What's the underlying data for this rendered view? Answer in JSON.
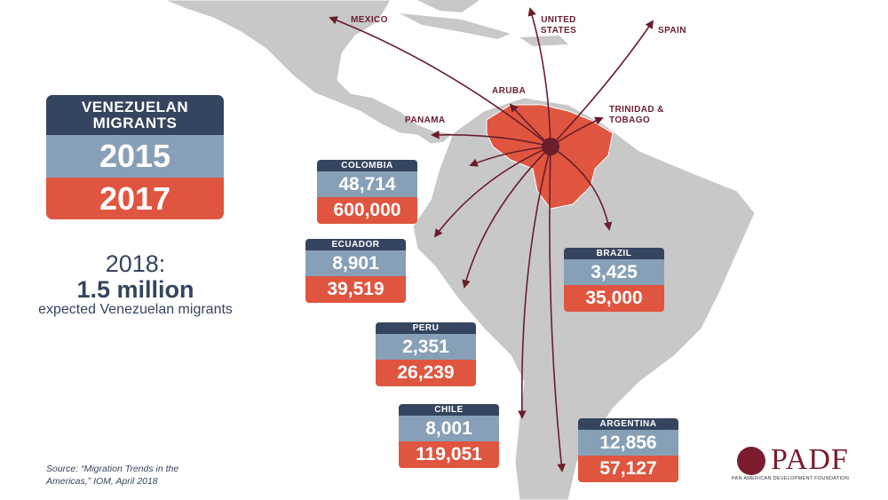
{
  "legend": {
    "title": "VENEZUELAN MIGRANTS",
    "year_a": "2015",
    "year_b": "2017"
  },
  "projection": {
    "year": "2018:",
    "value": "1.5 million",
    "note": "expected Venezuelan migrants"
  },
  "destinations": {
    "mexico": "MEXICO",
    "usa": "UNITED STATES",
    "spain": "SPAIN",
    "aruba": "ARUBA",
    "panama": "PANAMA",
    "trinidad": "TRINIDAD & TOBAGO"
  },
  "countries": [
    {
      "name": "COLOMBIA",
      "v2015": "48,714",
      "v2017": "600,000"
    },
    {
      "name": "ECUADOR",
      "v2015": "8,901",
      "v2017": "39,519"
    },
    {
      "name": "BRAZIL",
      "v2015": "3,425",
      "v2017": "35,000"
    },
    {
      "name": "PERU",
      "v2015": "2,351",
      "v2017": "26,239"
    },
    {
      "name": "CHILE",
      "v2015": "8,001",
      "v2017": "119,051"
    },
    {
      "name": "ARGENTINA",
      "v2015": "12,856",
      "v2017": "57,127"
    }
  ],
  "source": "Source: “Migration Trends in the Americas,” IOM, April 2018",
  "logo": {
    "word": "PADF",
    "tagline": "PAN AMERICAN DEVELOPMENT FOUNDATION"
  },
  "colors": {
    "map_land": "#c8c8c8",
    "venezuela": "#e0553f",
    "arrow": "#6a1d2c",
    "header": "#35455f",
    "year2015": "#87a0b7",
    "year2017": "#e0553f"
  }
}
